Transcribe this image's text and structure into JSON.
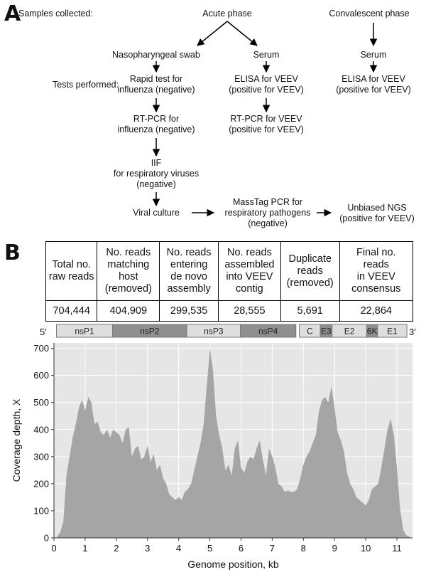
{
  "panels": {
    "a": "A",
    "b": "B"
  },
  "flow": {
    "samples_label": "Samples collected:",
    "tests_label": "Tests performed:",
    "acute_phase": "Acute phase",
    "convalescent_phase": "Convalescent phase",
    "nasopharyngeal_swab": "Nasopharyngeal swab",
    "serum_acute": "Serum",
    "serum_convalescent": "Serum",
    "rapid_test": [
      "Rapid test for",
      "influenza (negative)"
    ],
    "elisa_acute": [
      "ELISA for VEEV",
      "(positive for VEEV)"
    ],
    "elisa_convalescent": [
      "ELISA for VEEV",
      "(positive for VEEV)"
    ],
    "rtpcr_influenza": [
      "RT-PCR for",
      "influenza (negative)"
    ],
    "rtpcr_veev": [
      "RT-PCR for VEEV",
      "(positive for VEEV)"
    ],
    "iif": [
      "IIF",
      "for respiratory viruses",
      "(negative)"
    ],
    "viral_culture": "Viral culture",
    "masstag": [
      "MassTag PCR for",
      "respiratory pathogens",
      "(negative)"
    ],
    "ngs": [
      "Unbiased NGS",
      "(positive for VEEV)"
    ]
  },
  "reads_table": {
    "headers": [
      [
        "Total no.",
        "raw reads"
      ],
      [
        "No. reads",
        "matching",
        "host",
        "(removed)"
      ],
      [
        "No. reads",
        "entering",
        "de novo",
        "assembly"
      ],
      [
        "No. reads",
        "assembled",
        "into VEEV",
        "contig"
      ],
      [
        "Duplicate",
        "reads",
        "(removed)"
      ],
      [
        "Final no.",
        "reads",
        "in VEEV",
        "consensus"
      ]
    ],
    "values": [
      "704,444",
      "404,909",
      "299,535",
      "28,555",
      "5,691",
      "22,864"
    ]
  },
  "genome_map": {
    "five_prime": "5'",
    "three_prime": "3'",
    "segments": [
      {
        "label": "nsP1",
        "start": 0.08,
        "end": 1.88,
        "shade": "light"
      },
      {
        "label": "nsP2",
        "start": 1.88,
        "end": 4.26,
        "shade": "dark"
      },
      {
        "label": "nsP3",
        "start": 4.26,
        "end": 5.98,
        "shade": "light"
      },
      {
        "label": "nsP4",
        "start": 5.98,
        "end": 7.76,
        "shade": "dark"
      },
      {
        "label": "C",
        "start": 7.87,
        "end": 8.54,
        "shade": "light"
      },
      {
        "label": "E3",
        "start": 8.54,
        "end": 8.92,
        "shade": "dark"
      },
      {
        "label": "E2",
        "start": 8.92,
        "end": 10.03,
        "shade": "light"
      },
      {
        "label": "6K",
        "start": 10.03,
        "end": 10.38,
        "shade": "dark"
      },
      {
        "label": "E1",
        "start": 10.38,
        "end": 11.32,
        "shade": "light"
      }
    ],
    "colors": {
      "light": "#dedede",
      "dark": "#8f8f8f",
      "border": "#777777"
    }
  },
  "chart_data": {
    "type": "area",
    "xlabel": "Genome position, kb",
    "ylabel": "Coverage depth, X",
    "xlim": [
      0,
      11.5
    ],
    "ylim": [
      0,
      720
    ],
    "xticks": [
      0,
      1,
      2,
      3,
      4,
      5,
      6,
      7,
      8,
      9,
      10,
      11
    ],
    "yticks": [
      0,
      100,
      200,
      300,
      400,
      500,
      600,
      700
    ],
    "grid": true,
    "colors": {
      "background": "#e6e6e6",
      "fill": "#a5a5a5",
      "grid": "#ffffff"
    },
    "series": [
      {
        "x": [
          0.1,
          0.2,
          0.3,
          0.4,
          0.5,
          0.6,
          0.7,
          0.8,
          0.9,
          1.0,
          1.1,
          1.2,
          1.3,
          1.4,
          1.5,
          1.6,
          1.7,
          1.8,
          1.9,
          2.0,
          2.1,
          2.2,
          2.3,
          2.4,
          2.5,
          2.6,
          2.7,
          2.8,
          2.9,
          3.0,
          3.1,
          3.2,
          3.3,
          3.4,
          3.5,
          3.6,
          3.7,
          3.8,
          3.9,
          4.0,
          4.1,
          4.2,
          4.3,
          4.4,
          4.5,
          4.6,
          4.7,
          4.8,
          4.9,
          5.0,
          5.1,
          5.2,
          5.3,
          5.4,
          5.5,
          5.6,
          5.7,
          5.8,
          5.9,
          6.0,
          6.1,
          6.2,
          6.3,
          6.4,
          6.5,
          6.6,
          6.7,
          6.8,
          6.9,
          7.0,
          7.1,
          7.2,
          7.3,
          7.4,
          7.5,
          7.6,
          7.7,
          7.8,
          7.9,
          8.0,
          8.1,
          8.2,
          8.3,
          8.4,
          8.5,
          8.6,
          8.7,
          8.8,
          8.9,
          9.0,
          9.1,
          9.2,
          9.3,
          9.4,
          9.5,
          9.6,
          9.7,
          9.8,
          9.9,
          10.0,
          10.1,
          10.2,
          10.3,
          10.4,
          10.5,
          10.6,
          10.7,
          10.8,
          10.9,
          11.0,
          11.1,
          11.2,
          11.3,
          11.4
        ],
        "values": [
          5,
          20,
          60,
          230,
          300,
          370,
          420,
          480,
          510,
          470,
          520,
          500,
          420,
          430,
          390,
          380,
          400,
          370,
          400,
          390,
          380,
          350,
          400,
          410,
          300,
          330,
          340,
          290,
          300,
          340,
          280,
          310,
          250,
          270,
          220,
          200,
          160,
          150,
          140,
          150,
          140,
          170,
          180,
          200,
          250,
          300,
          350,
          420,
          560,
          700,
          620,
          450,
          380,
          330,
          250,
          270,
          230,
          330,
          360,
          260,
          240,
          280,
          300,
          290,
          330,
          360,
          290,
          230,
          330,
          300,
          260,
          200,
          190,
          170,
          175,
          170,
          170,
          180,
          220,
          270,
          300,
          320,
          350,
          380,
          470,
          510,
          520,
          500,
          560,
          480,
          390,
          360,
          320,
          240,
          200,
          180,
          150,
          140,
          130,
          120,
          140,
          180,
          190,
          200,
          260,
          330,
          400,
          440,
          380,
          260,
          110,
          30,
          10,
          5
        ]
      }
    ]
  }
}
